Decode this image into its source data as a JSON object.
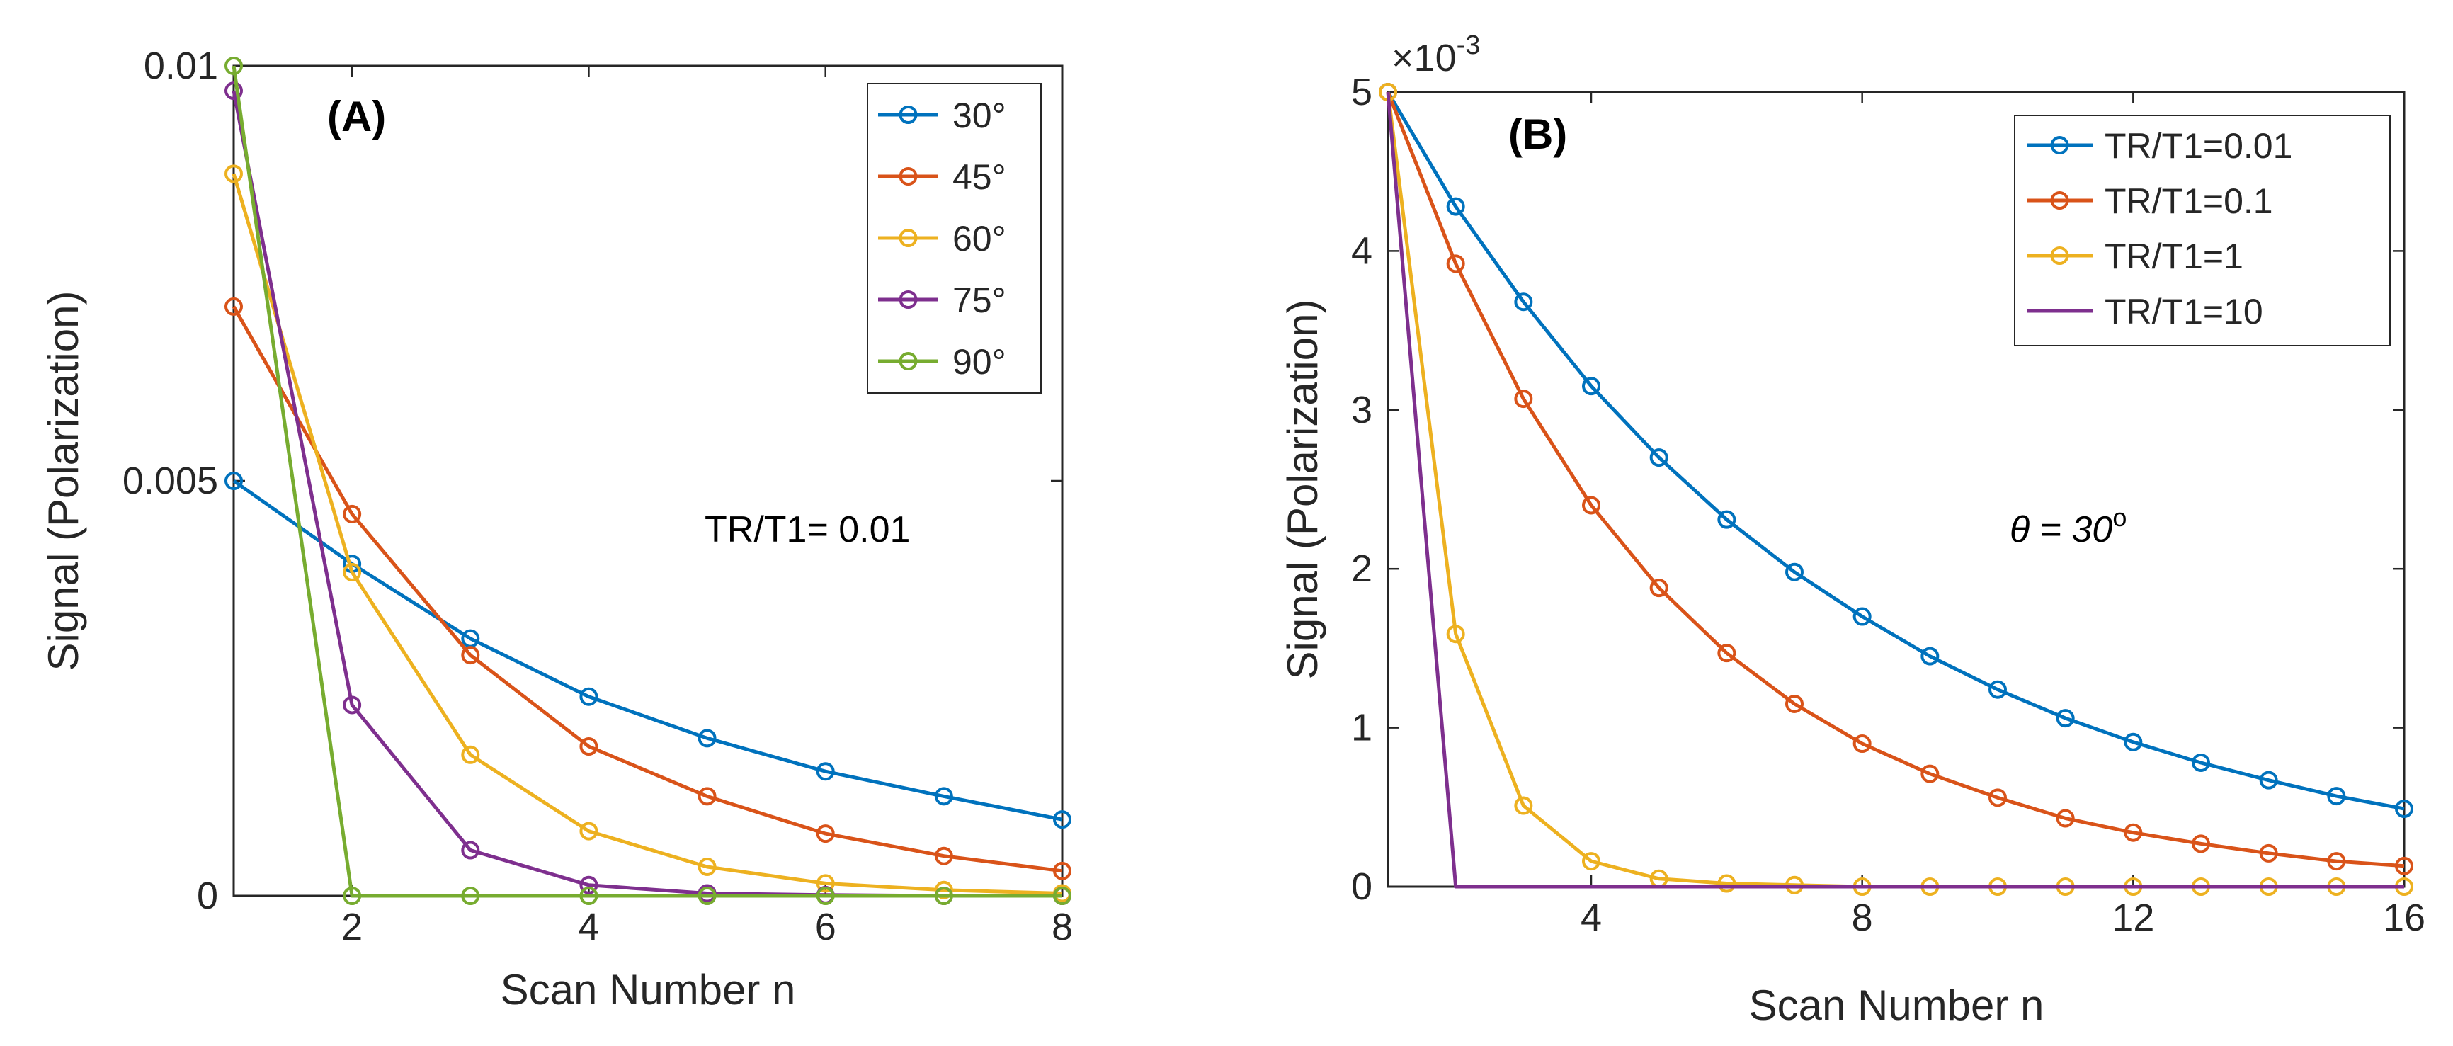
{
  "chart_data": [
    {
      "type": "line",
      "panel_label": "(A)",
      "xlabel": "Scan Number n",
      "ylabel": "Signal (Polarization)",
      "xlim": [
        1,
        8
      ],
      "ylim": [
        0,
        0.01
      ],
      "xticks": [
        2,
        4,
        6,
        8
      ],
      "xtick_labels": [
        "2",
        "4",
        "6",
        "8"
      ],
      "yticks": [
        0,
        0.005,
        0.01
      ],
      "ytick_labels": [
        "0",
        "0.005",
        "0.01"
      ],
      "annotation": "TR/T1= 0.01",
      "legend_position": "top-right",
      "x": [
        1,
        2,
        3,
        4,
        5,
        6,
        7,
        8
      ],
      "series": [
        {
          "name": "30°",
          "color": "#0072BD",
          "values": [
            0.005,
            0.004,
            0.0031,
            0.0024,
            0.0019,
            0.0015,
            0.0012,
            0.00092
          ]
        },
        {
          "name": "45°",
          "color": "#D95319",
          "values": [
            0.0071,
            0.0046,
            0.0029,
            0.0018,
            0.0012,
            0.00075,
            0.00048,
            0.0003
          ]
        },
        {
          "name": "60°",
          "color": "#EDB120",
          "values": [
            0.0087,
            0.0039,
            0.0017,
            0.00078,
            0.00035,
            0.00015,
            7e-05,
            3e-05
          ]
        },
        {
          "name": "75°",
          "color": "#7E2F8E",
          "values": [
            0.0097,
            0.0023,
            0.00055,
            0.00013,
            3e-05,
            1e-05,
            0.0,
            0.0
          ]
        },
        {
          "name": "90°",
          "color": "#77AC30",
          "values": [
            0.01,
            0.0,
            0.0,
            0.0,
            0.0,
            0.0,
            0.0,
            0.0
          ]
        }
      ]
    },
    {
      "type": "line",
      "panel_label": "(B)",
      "xlabel": "Scan Number n",
      "ylabel": "Signal (Polarization)",
      "y_multiplier": "×10",
      "y_multiplier_exponent": "-3",
      "xlim": [
        1,
        16
      ],
      "ylim": [
        0,
        5
      ],
      "xticks": [
        4,
        8,
        12,
        16
      ],
      "xtick_labels": [
        "4",
        "8",
        "12",
        "16"
      ],
      "yticks": [
        0,
        1,
        2,
        3,
        4,
        5
      ],
      "ytick_labels": [
        "0",
        "1",
        "2",
        "3",
        "4",
        "5"
      ],
      "annotation": "θ = 30",
      "annotation_superscript": "o",
      "legend_position": "top-right",
      "x": [
        1,
        2,
        3,
        4,
        5,
        6,
        7,
        8,
        9,
        10,
        11,
        12,
        13,
        14,
        15,
        16
      ],
      "series": [
        {
          "name": "TR/T1=0.01",
          "color": "#0072BD",
          "markers": true,
          "values": [
            5.0,
            4.28,
            3.68,
            3.15,
            2.7,
            2.31,
            1.98,
            1.7,
            1.45,
            1.24,
            1.06,
            0.91,
            0.78,
            0.67,
            0.57,
            0.49
          ]
        },
        {
          "name": "TR/T1=0.1",
          "color": "#D95319",
          "markers": true,
          "values": [
            5.0,
            3.92,
            3.07,
            2.4,
            1.88,
            1.47,
            1.15,
            0.9,
            0.71,
            0.56,
            0.43,
            0.34,
            0.27,
            0.21,
            0.16,
            0.13
          ]
        },
        {
          "name": "TR/T1=1",
          "color": "#EDB120",
          "markers": true,
          "values": [
            5.0,
            1.59,
            0.51,
            0.16,
            0.05,
            0.02,
            0.01,
            0.0,
            0.0,
            0.0,
            0.0,
            0.0,
            0.0,
            0.0,
            0.0,
            0.0
          ]
        },
        {
          "name": "TR/T1=10",
          "color": "#7E2F8E",
          "markers": false,
          "values": [
            5.0,
            0.0,
            0.0,
            0.0,
            0.0,
            0.0,
            0.0,
            0.0,
            0.0,
            0.0,
            0.0,
            0.0,
            0.0,
            0.0,
            0.0,
            0.0
          ]
        }
      ]
    }
  ]
}
